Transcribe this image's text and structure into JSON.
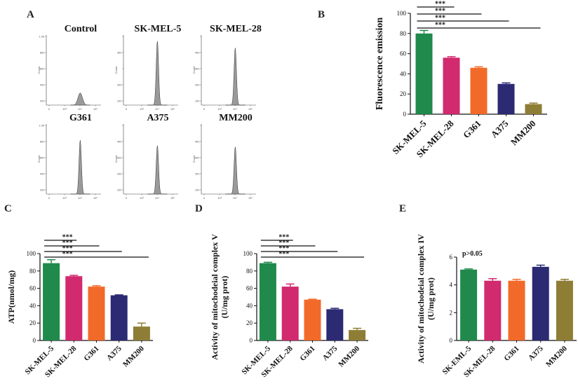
{
  "panels": {
    "A": "A",
    "B": "B",
    "C": "C",
    "D": "D",
    "E": "E"
  },
  "colors": {
    "SK-MEL-5": "#1f8a4c",
    "SK-MEL-28": "#d12a6e",
    "G361": "#f26a2a",
    "A375": "#2b2a73",
    "MM200": "#8e7d35",
    "hist_fill": "#9a9a9a"
  },
  "histograms": [
    {
      "title": "Control",
      "peak_height": 0.18,
      "peak_pos": 0.62,
      "yticks": [
        "1.0K",
        "800",
        "600",
        "400",
        "200"
      ]
    },
    {
      "title": "SK-MEL-5",
      "peak_height": 0.95,
      "peak_pos": 0.62,
      "yticks": [
        "",
        "300",
        "",
        "200",
        "100"
      ]
    },
    {
      "title": "SK-MEL-28",
      "peak_height": 0.85,
      "peak_pos": 0.62,
      "yticks": [
        "",
        "400",
        "300",
        "200",
        "100"
      ]
    },
    {
      "title": "G361",
      "peak_height": 0.8,
      "peak_pos": 0.62,
      "yticks": [
        "1.0K",
        "800",
        "600",
        "400",
        "200"
      ]
    },
    {
      "title": "A375",
      "peak_height": 0.72,
      "peak_pos": 0.62,
      "yticks": [
        "",
        "400",
        "300",
        "200",
        "100"
      ]
    },
    {
      "title": "MM200",
      "peak_height": 0.7,
      "peak_pos": 0.62,
      "yticks": [
        "",
        "400",
        "300",
        "200",
        "100"
      ]
    }
  ],
  "hist_axis": {
    "count_label": "Count",
    "xticks": [
      "0",
      "10³",
      "10⁴",
      "10⁵"
    ]
  },
  "chart_data": [
    {
      "panel": "B",
      "type": "bar",
      "title": "",
      "ylabel": "Fluorescence emission",
      "ylim": [
        0,
        100
      ],
      "yticks": [
        0,
        20,
        40,
        60,
        80,
        100
      ],
      "categories": [
        "SK-MEL-5",
        "SK-MEL-28",
        "G361",
        "A375",
        "MM200"
      ],
      "values": [
        80,
        56,
        46,
        30,
        10
      ],
      "errors": [
        3,
        1,
        1,
        1,
        1
      ],
      "significance": [
        {
          "from": 0,
          "to": 1,
          "label": "***"
        },
        {
          "from": 0,
          "to": 2,
          "label": "***"
        },
        {
          "from": 0,
          "to": 3,
          "label": "***"
        },
        {
          "from": 0,
          "to": 4,
          "label": "***"
        }
      ]
    },
    {
      "panel": "C",
      "type": "bar",
      "title": "",
      "ylabel": "ATP(nmol/mg)",
      "ylim": [
        0,
        100
      ],
      "yticks": [
        0,
        20,
        40,
        60,
        80,
        100
      ],
      "categories": [
        "SK-MEL-5",
        "SK-MEL-28",
        "G361",
        "A375",
        "MM200"
      ],
      "values": [
        89,
        74,
        62,
        52,
        16
      ],
      "errors": [
        4,
        1,
        1,
        0.5,
        4
      ],
      "significance": [
        {
          "from": 0,
          "to": 1,
          "label": "***"
        },
        {
          "from": 0,
          "to": 2,
          "label": "***"
        },
        {
          "from": 0,
          "to": 3,
          "label": "***"
        },
        {
          "from": 0,
          "to": 4,
          "label": "***"
        }
      ]
    },
    {
      "panel": "D",
      "type": "bar",
      "title": "",
      "ylabel": "Activity of mitochodeial complex V",
      "ylabel2": "(U/mg prot)",
      "ylim": [
        0,
        100
      ],
      "yticks": [
        0,
        20,
        40,
        60,
        80,
        100
      ],
      "categories": [
        "SK-MEL-5",
        "SK-MEL-28",
        "G361",
        "A375",
        "MM200"
      ],
      "values": [
        89,
        62,
        47,
        36,
        12
      ],
      "errors": [
        1,
        3,
        0.5,
        1,
        2
      ],
      "significance": [
        {
          "from": 0,
          "to": 1,
          "label": "***"
        },
        {
          "from": 0,
          "to": 2,
          "label": "***"
        },
        {
          "from": 0,
          "to": 3,
          "label": "***"
        },
        {
          "from": 0,
          "to": 4,
          "label": "***"
        }
      ]
    },
    {
      "panel": "E",
      "type": "bar",
      "title": "",
      "ylabel": "Activity of mitochodeial complex IV",
      "ylabel2": "(U/mg prot)",
      "ylim": [
        0,
        6
      ],
      "yticks": [
        0,
        2,
        4,
        6
      ],
      "categories": [
        "SK-EML-5",
        "SK-MEL-28",
        "G361",
        "A375",
        "MM200"
      ],
      "values": [
        5.1,
        4.3,
        4.3,
        5.3,
        4.3
      ],
      "errors": [
        0.05,
        0.15,
        0.1,
        0.12,
        0.1
      ],
      "annotation": "p>0.05",
      "significance": []
    }
  ]
}
